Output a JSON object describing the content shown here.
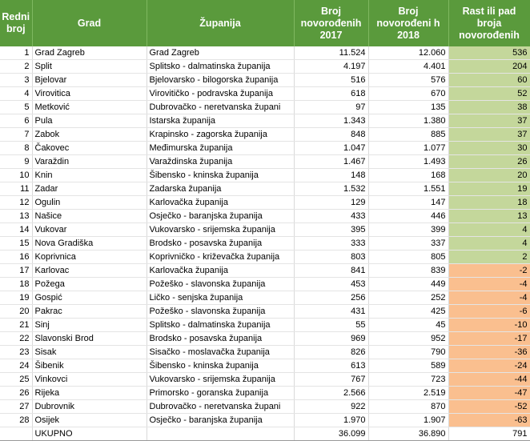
{
  "table": {
    "header": [
      "Redni broj",
      "Grad",
      "Županija",
      "Broj novorođenih 2017",
      "Broj novorođeni h 2018",
      "Rast ili pad broja novorođenih"
    ],
    "rows": [
      [
        "1",
        "Grad Zagreb",
        "Grad Zagreb",
        "11.524",
        "12.060",
        "536"
      ],
      [
        "2",
        "Split",
        "Splitsko - dalmatinska županija",
        "4.197",
        "4.401",
        "204"
      ],
      [
        "3",
        "Bjelovar",
        "Bjelovarsko - bilogorska županija",
        "516",
        "576",
        "60"
      ],
      [
        "4",
        "Virovitica",
        "Virovitičko - podravska županija",
        "618",
        "670",
        "52"
      ],
      [
        "5",
        "Metković",
        "Dubrovačko - neretvanska župani",
        "97",
        "135",
        "38"
      ],
      [
        "6",
        "Pula",
        "Istarska županija",
        "1.343",
        "1.380",
        "37"
      ],
      [
        "7",
        "Zabok",
        "Krapinsko - zagorska županija",
        "848",
        "885",
        "37"
      ],
      [
        "8",
        "Čakovec",
        "Međimurska županija",
        "1.047",
        "1.077",
        "30"
      ],
      [
        "9",
        "Varaždin",
        "Varaždinska županija",
        "1.467",
        "1.493",
        "26"
      ],
      [
        "10",
        "Knin",
        "Šibensko - kninska županija",
        "148",
        "168",
        "20"
      ],
      [
        "11",
        "Zadar",
        "Zadarska županija",
        "1.532",
        "1.551",
        "19"
      ],
      [
        "12",
        "Ogulin",
        "Karlovačka županija",
        "129",
        "147",
        "18"
      ],
      [
        "13",
        "Našice",
        "Osječko - baranjska županija",
        "433",
        "446",
        "13"
      ],
      [
        "14",
        "Vukovar",
        "Vukovarsko - srijemska županija",
        "395",
        "399",
        "4"
      ],
      [
        "15",
        "Nova Gradiška",
        "Brodsko - posavska županija",
        "333",
        "337",
        "4"
      ],
      [
        "16",
        "Koprivnica",
        "Koprivničko - križevačka županija",
        "803",
        "805",
        "2"
      ],
      [
        "17",
        "Karlovac",
        "Karlovačka županija",
        "841",
        "839",
        "-2"
      ],
      [
        "18",
        "Požega",
        "Požeško - slavonska županija",
        "453",
        "449",
        "-4"
      ],
      [
        "19",
        "Gospić",
        "Ličko - senjska županija",
        "256",
        "252",
        "-4"
      ],
      [
        "20",
        "Pakrac",
        "Požeško - slavonska županija",
        "431",
        "425",
        "-6"
      ],
      [
        "21",
        "Sinj",
        "Splitsko - dalmatinska županija",
        "55",
        "45",
        "-10"
      ],
      [
        "22",
        "Slavonski Brod",
        "Brodsko - posavska županija",
        "969",
        "952",
        "-17"
      ],
      [
        "23",
        "Sisak",
        "Sisačko - moslavačka županija",
        "826",
        "790",
        "-36"
      ],
      [
        "24",
        "Šibenik",
        "Šibensko - kninska županija",
        "613",
        "589",
        "-24"
      ],
      [
        "25",
        "Vinkovci",
        "Vukovarsko - srijemska županija",
        "767",
        "723",
        "-44"
      ],
      [
        "26",
        "Rijeka",
        "Primorsko - goranska županija",
        "2.566",
        "2.519",
        "-47"
      ],
      [
        "27",
        "Dubrovnik",
        "Dubrovačko - neretvanska župani",
        "922",
        "870",
        "-52"
      ],
      [
        "28",
        "Osijek",
        "Osječko - baranjska županija",
        "1.970",
        "1.907",
        "-63"
      ]
    ],
    "total": [
      "UKUPNO",
      "36.099",
      "36.890",
      "791"
    ]
  }
}
